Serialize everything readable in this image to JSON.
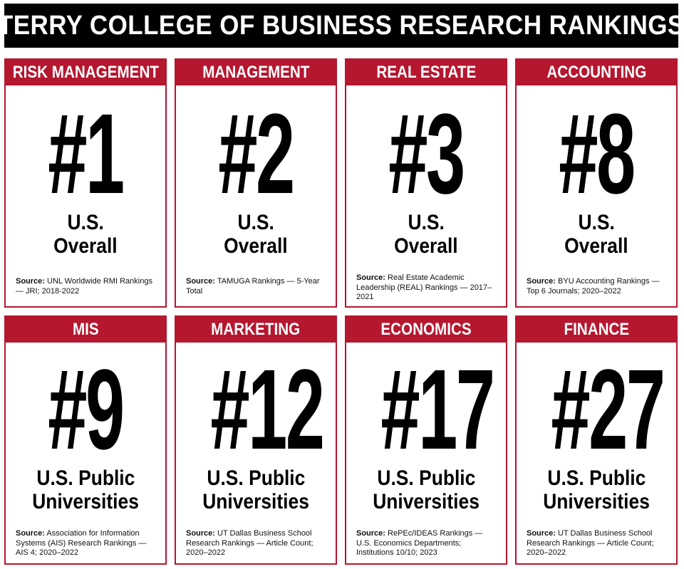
{
  "title": "TERRY COLLEGE OF BUSINESS RESEARCH RANKINGS",
  "cards": [
    {
      "category": "RISK MANAGEMENT",
      "rank": "#1",
      "scope_line1": "U.S.",
      "scope_line2": "Overall",
      "source_label": "Source:",
      "source_text": "UNL Worldwide RMI Rankings — JRI; 2018-2022"
    },
    {
      "category": "MANAGEMENT",
      "rank": "#2",
      "scope_line1": "U.S.",
      "scope_line2": "Overall",
      "source_label": "Source:",
      "source_text": "TAMUGA Rankings — 5-Year Total"
    },
    {
      "category": "REAL ESTATE",
      "rank": "#3",
      "scope_line1": "U.S.",
      "scope_line2": "Overall",
      "source_label": "Source:",
      "source_text": "Real Estate Academic Leadership (REAL) Rankings — 2017–2021"
    },
    {
      "category": "ACCOUNTING",
      "rank": "#8",
      "scope_line1": "U.S.",
      "scope_line2": "Overall",
      "source_label": "Source:",
      "source_text": "BYU Accounting Rankings — Top 6 Journals; 2020–2022"
    },
    {
      "category": "MIS",
      "rank": "#9",
      "scope_line1": "U.S. Public",
      "scope_line2": "Universities",
      "source_label": "Source:",
      "source_text": "Association for Information Systems (AIS) Research Rankings — AIS 4; 2020–2022"
    },
    {
      "category": "MARKETING",
      "rank": "#12",
      "scope_line1": "U.S. Public",
      "scope_line2": "Universities",
      "source_label": "Source:",
      "source_text": "UT Dallas Business School Research Rankings — Article Count; 2020–2022"
    },
    {
      "category": "ECONOMICS",
      "rank": "#17",
      "scope_line1": "U.S. Public",
      "scope_line2": "Universities",
      "source_label": "Source:",
      "source_text": "RePEc/IDEAS Rankings — U.S. Economics Departments; Institutions 10/10; 2023"
    },
    {
      "category": "FINANCE",
      "rank": "#27",
      "scope_line1": "U.S. Public",
      "scope_line2": "Universities",
      "source_label": "Source:",
      "source_text": "UT Dallas Business School Research Rankings — Article Count; 2020–2022"
    }
  ],
  "colors": {
    "accent": "#b5172f",
    "title_bg": "#000000"
  }
}
